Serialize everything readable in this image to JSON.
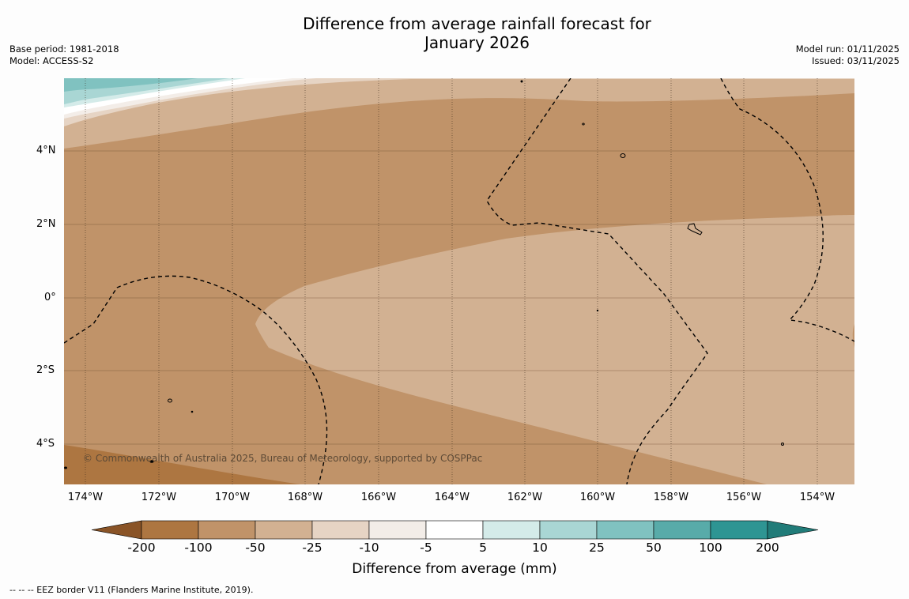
{
  "title": {
    "line1": "Difference from average rainfall forecast for",
    "line2": "January 2026"
  },
  "meta_left": {
    "base_period": "Base period: 1981-2018",
    "model": "Model: ACCESS-S2"
  },
  "meta_right": {
    "model_run": "Model run: 01/11/2025",
    "issued": "Issued: 03/11/2025"
  },
  "map": {
    "lat_labels": [
      "4°N",
      "2°N",
      "0°",
      "2°S",
      "4°S"
    ],
    "lon_labels": [
      "174°W",
      "172°W",
      "170°W",
      "168°W",
      "166°W",
      "164°W",
      "162°W",
      "160°W",
      "158°W",
      "156°W",
      "154°W"
    ],
    "copyright": "© Commonwealth of Australia 2025, Bureau of Meteorology, supported by COSPPac",
    "fill_dominant": "-100 to -50 mm",
    "colors": {
      "frame": "#c09369",
      "band_minus100_minus50": "#c09369",
      "band_minus50_minus25": "#d2b192",
      "band_minus25_minus10": "#e6d4c4",
      "band_minus10_minus5": "#f3ede8",
      "band_minus5_5": "#ffffff",
      "band_5_10": "#d4ebe9",
      "band_10_25": "#a9d6d4",
      "band_25_50": "#80c2c0",
      "band_minus200_minus100": "#ad7641"
    }
  },
  "colorbar": {
    "ticks": [
      "-200",
      "-100",
      "-50",
      "-25",
      "-10",
      "-5",
      "5",
      "10",
      "25",
      "50",
      "100",
      "200"
    ],
    "colors": [
      "#8a5427",
      "#ad7641",
      "#c09369",
      "#d2b192",
      "#e6d4c4",
      "#f3ede8",
      "#ffffff",
      "#d4ebe9",
      "#a9d6d4",
      "#80c2c0",
      "#58aba9",
      "#2e9593",
      "#217c79"
    ],
    "title": "Difference from average (mm)"
  },
  "footer": "--  --  -- EEZ border V11 (Flanders Marine Institute, 2019)."
}
